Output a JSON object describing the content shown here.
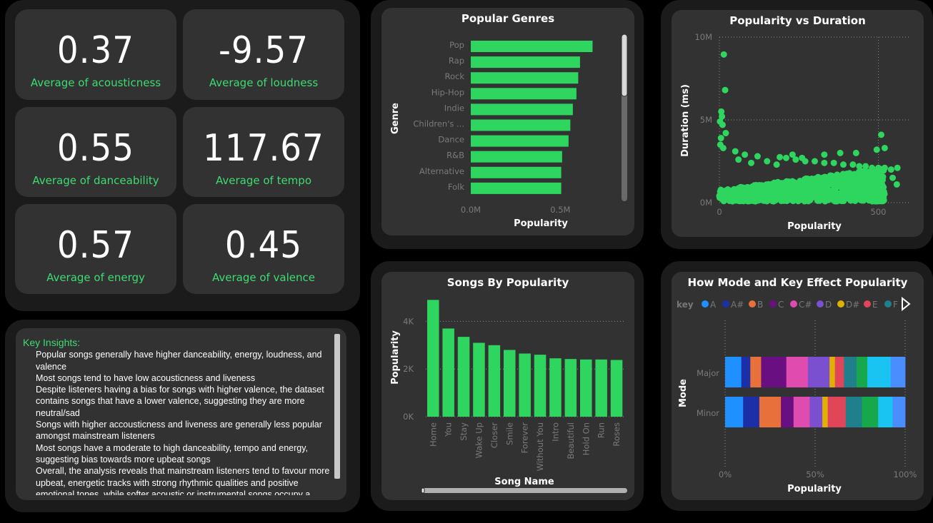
{
  "colors": {
    "accent": "#2ed65f",
    "panel": "#323232",
    "outer": "#1b1b1b",
    "background": "#000000"
  },
  "kpis": [
    {
      "value": "0.37",
      "label": "Average of acousticness"
    },
    {
      "value": "-9.57",
      "label": "Average of loudness"
    },
    {
      "value": "0.55",
      "label": "Average of danceability"
    },
    {
      "value": "117.67",
      "label": "Average of tempo"
    },
    {
      "value": "0.57",
      "label": "Average of energy"
    },
    {
      "value": "0.45",
      "label": "Average of valence"
    }
  ],
  "insights": {
    "title": "Key Insights:",
    "items": [
      "Popular songs generally have higher danceability, energy, loudness, and valence",
      "Most songs tend to have low acousticness and liveness",
      "Despite listeners having a bias for songs with higher valence, the dataset contains songs that have a lower valence, suggesting they are more neutral/sad",
      "Songs with higher accousticness and liveness are generally less popular amongst mainstream listeners",
      "Most songs have a moderate to high danceability, tempo and energy, suggesting bias towards more upbeat songs",
      "Overall, the analysis reveals that mainstream listeners tend to favour more upbeat, energetic tracks with strong rhythmic qualities and positive emotional tones, while softer acoustic or instrumental songs occupy a"
    ]
  },
  "chart_data": [
    {
      "type": "bar",
      "orientation": "horizontal",
      "title": "Popular Genres",
      "xlabel": "Popularity",
      "ylabel": "Genre",
      "categories": [
        "Pop",
        "Rap",
        "Rock",
        "Hip-Hop",
        "Indie",
        "Children's ...",
        "Dance",
        "R&B",
        "Alternative",
        "Folk"
      ],
      "values": [
        0.68,
        0.61,
        0.6,
        0.59,
        0.57,
        0.556,
        0.546,
        0.51,
        0.505,
        0.505
      ],
      "xlim": [
        0,
        0.75
      ],
      "xticks": [
        "0.0M",
        "0.5M"
      ],
      "grid": false
    },
    {
      "type": "scatter",
      "title": "Popularity vs Duration",
      "xlabel": "Popularity",
      "ylabel": "Duration (ms)",
      "xlim": [
        0,
        600
      ],
      "ylim": [
        0,
        10000000
      ],
      "xticks": [
        "0",
        "500"
      ],
      "yticks": [
        "0M",
        "5M",
        "10M"
      ],
      "points": [
        [
          14,
          8950000
        ],
        [
          18,
          6800000
        ],
        [
          6,
          5500000
        ],
        [
          8,
          5200000
        ],
        [
          2,
          4900000
        ],
        [
          10,
          4700000
        ],
        [
          20,
          4200000
        ],
        [
          5,
          3900000
        ],
        [
          3,
          3500000
        ],
        [
          12,
          3300000
        ],
        [
          50,
          3100000
        ],
        [
          80,
          2900000
        ],
        [
          120,
          2800000
        ],
        [
          190,
          2750000
        ],
        [
          210,
          2700000
        ],
        [
          240,
          2600000
        ],
        [
          270,
          2500000
        ],
        [
          300,
          2500000
        ],
        [
          330,
          2400000
        ],
        [
          360,
          2400000
        ],
        [
          390,
          2300000
        ],
        [
          420,
          2300000
        ],
        [
          440,
          2200000
        ],
        [
          460,
          2200000
        ],
        [
          480,
          2100000
        ],
        [
          500,
          2100000
        ],
        [
          520,
          2100000
        ],
        [
          540,
          2000000
        ],
        [
          520,
          3300000
        ],
        [
          509,
          4100000
        ],
        [
          495,
          3200000
        ],
        [
          560,
          2100000
        ],
        [
          545,
          1500000
        ],
        [
          558,
          1100000
        ],
        [
          430,
          3000000
        ],
        [
          380,
          3000000
        ],
        [
          330,
          2900000
        ],
        [
          260,
          2700000
        ],
        [
          230,
          2900000
        ],
        [
          180,
          2300000
        ],
        [
          150,
          2500000
        ],
        [
          60,
          2600000
        ],
        [
          100,
          2400000
        ]
      ],
      "dense_band": {
        "x_max": 520,
        "y_min": 0,
        "y_max": 2000000
      },
      "grid": true
    },
    {
      "type": "bar",
      "title": "Songs By Popularity",
      "xlabel": "Song Name",
      "ylabel": "Popularity",
      "categories": [
        "Home",
        "You",
        "Stay",
        "Wake Up",
        "Closer",
        "Smile",
        "Forever",
        "Without You",
        "Intro",
        "Beautiful",
        "Hold On",
        "Run",
        "Roses"
      ],
      "values": [
        4900,
        3700,
        3350,
        3100,
        3000,
        2800,
        2650,
        2600,
        2450,
        2420,
        2400,
        2400,
        2380
      ],
      "ylim": [
        0,
        5000
      ],
      "yticks": [
        "0K",
        "2K",
        "4K"
      ],
      "grid": true
    },
    {
      "type": "bar",
      "stacked": "100%",
      "orientation": "horizontal",
      "title": "How Mode and Key Effect Popularity",
      "xlabel": "Popularity",
      "ylabel": "Mode",
      "legend_title": "key",
      "legend_position": "top-left",
      "legend": [
        {
          "name": "A",
          "color": "#1e90ff"
        },
        {
          "name": "A#",
          "color": "#1a2fa8"
        },
        {
          "name": "B",
          "color": "#e8703a"
        },
        {
          "name": "C",
          "color": "#6a0f82"
        },
        {
          "name": "C#",
          "color": "#e04bb0"
        },
        {
          "name": "D",
          "color": "#7a4fd0"
        },
        {
          "name": "D#",
          "color": "#e0b000"
        },
        {
          "name": "E",
          "color": "#e0455a"
        },
        {
          "name": "F",
          "color": "#1f7f8a"
        }
      ],
      "categories": [
        "Major",
        "Minor"
      ],
      "segments": [
        {
          "colors": [
            "#1e90ff",
            "#1a2fa8",
            "#e8703a",
            "#6a0f82",
            "#e04bb0",
            "#7a4fd0",
            "#e0b000",
            "#e0455a",
            "#1f7f8a",
            "#16a84a",
            "#19c4f2",
            "#4a8dff"
          ],
          "Major": [
            9,
            5,
            6,
            14,
            12,
            12,
            3,
            5,
            7,
            6,
            13,
            8
          ],
          "Minor": [
            10,
            9,
            12,
            7,
            9,
            7,
            3,
            10,
            9,
            9,
            8,
            7
          ]
        }
      ],
      "xticks": [
        "0%",
        "50%",
        "100%"
      ],
      "grid": true
    }
  ]
}
